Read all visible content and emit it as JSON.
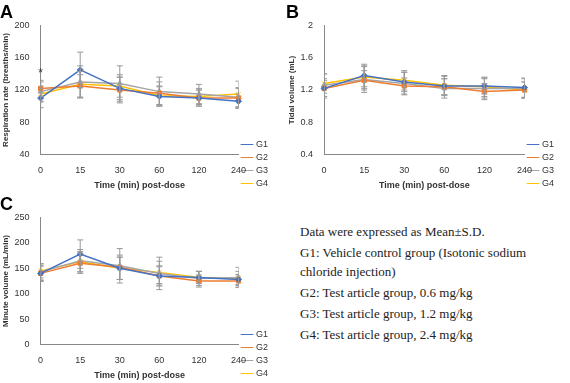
{
  "chart_data": [
    {
      "type": "line",
      "title": "A",
      "x_label": "Time (min) post-dose",
      "y_label": "Respiration rate (breaths/min)",
      "categories": [
        "0",
        "15",
        "30",
        "60",
        "120",
        "240"
      ],
      "ylim": [
        40,
        200
      ],
      "yticks": [
        40,
        80,
        120,
        160,
        200
      ],
      "grid": false,
      "legend": "right",
      "annotations": [
        {
          "text": "*",
          "x": "0",
          "y": 140
        }
      ],
      "series": [
        {
          "name": "G1",
          "color": "#4472c4",
          "marker": "diamond",
          "values": [
            110,
            145,
            122,
            112,
            110,
            106
          ],
          "errors": [
            12,
            22,
            14,
            12,
            10,
            9
          ]
        },
        {
          "name": "G2",
          "color": "#ed7d31",
          "marker": "square",
          "values": [
            122,
            125,
            120,
            116,
            110,
            110
          ],
          "errors": [
            10,
            14,
            16,
            14,
            10,
            12
          ]
        },
        {
          "name": "G3",
          "color": "#a5a5a5",
          "marker": "triangle",
          "values": [
            118,
            130,
            128,
            118,
            115,
            111
          ],
          "errors": [
            12,
            20,
            22,
            18,
            12,
            12
          ]
        },
        {
          "name": "G4",
          "color": "#ffc000",
          "marker": "cross",
          "values": [
            115,
            127,
            125,
            113,
            112,
            115
          ],
          "errors": [
            10,
            16,
            14,
            12,
            10,
            16
          ]
        }
      ]
    },
    {
      "type": "line",
      "title": "B",
      "x_label": "Time (min) post-dose",
      "y_label": "Tidal volume (mL)",
      "categories": [
        "0",
        "15",
        "30",
        "60",
        "120",
        "240"
      ],
      "ylim": [
        0.4,
        2
      ],
      "yticks": [
        0.4,
        0.8,
        1.2,
        1.6,
        2
      ],
      "grid": false,
      "legend": "right",
      "series": [
        {
          "name": "G1",
          "color": "#4472c4",
          "marker": "diamond",
          "values": [
            1.22,
            1.38,
            1.3,
            1.25,
            1.25,
            1.23
          ],
          "errors": [
            0.12,
            0.14,
            0.12,
            0.12,
            0.1,
            0.12
          ]
        },
        {
          "name": "G2",
          "color": "#ed7d31",
          "marker": "square",
          "values": [
            1.22,
            1.32,
            1.25,
            1.24,
            1.18,
            1.2
          ],
          "errors": [
            0.1,
            0.12,
            0.1,
            0.1,
            0.1,
            0.1
          ]
        },
        {
          "name": "G3",
          "color": "#a5a5a5",
          "marker": "triangle",
          "values": [
            1.26,
            1.33,
            1.28,
            1.22,
            1.22,
            1.22
          ],
          "errors": [
            0.14,
            0.16,
            0.14,
            0.12,
            0.12,
            0.12
          ]
        },
        {
          "name": "G4",
          "color": "#ffc000",
          "marker": "cross",
          "values": [
            1.28,
            1.36,
            1.32,
            1.26,
            1.24,
            1.2
          ],
          "errors": [
            0.12,
            0.14,
            0.12,
            0.12,
            0.12,
            0.1
          ]
        }
      ]
    },
    {
      "type": "line",
      "title": "C",
      "x_label": "Time (min) post-dose",
      "y_label": "Minute volume (mL/min)",
      "categories": [
        "0",
        "15",
        "30",
        "60",
        "120",
        "240"
      ],
      "ylim": [
        0,
        250
      ],
      "yticks": [
        0,
        50,
        100,
        150,
        200,
        250
      ],
      "grid": false,
      "legend": "right",
      "series": [
        {
          "name": "G1",
          "color": "#4472c4",
          "marker": "diamond",
          "values": [
            140,
            178,
            150,
            135,
            132,
            128
          ],
          "errors": [
            16,
            28,
            22,
            18,
            12,
            10
          ]
        },
        {
          "name": "G2",
          "color": "#ed7d31",
          "marker": "square",
          "values": [
            140,
            160,
            152,
            135,
            125,
            125
          ],
          "errors": [
            14,
            20,
            24,
            20,
            12,
            12
          ]
        },
        {
          "name": "G3",
          "color": "#a5a5a5",
          "marker": "triangle",
          "values": [
            143,
            165,
            155,
            140,
            130,
            132
          ],
          "errors": [
            16,
            22,
            34,
            32,
            14,
            20
          ]
        },
        {
          "name": "G4",
          "color": "#ffc000",
          "marker": "cross",
          "values": [
            145,
            163,
            150,
            142,
            132,
            130
          ],
          "errors": [
            14,
            20,
            22,
            22,
            12,
            14
          ]
        }
      ]
    }
  ],
  "notes": [
    "Data were expressed as Mean±S.D.",
    "G1: Vehicle control group (Isotonic sodium chloride injection)",
    "G2: Test article group, 0.6 mg/kg",
    "G3: Test article group, 1.2 mg/kg",
    "G4: Test article group, 2.4 mg/kg"
  ]
}
